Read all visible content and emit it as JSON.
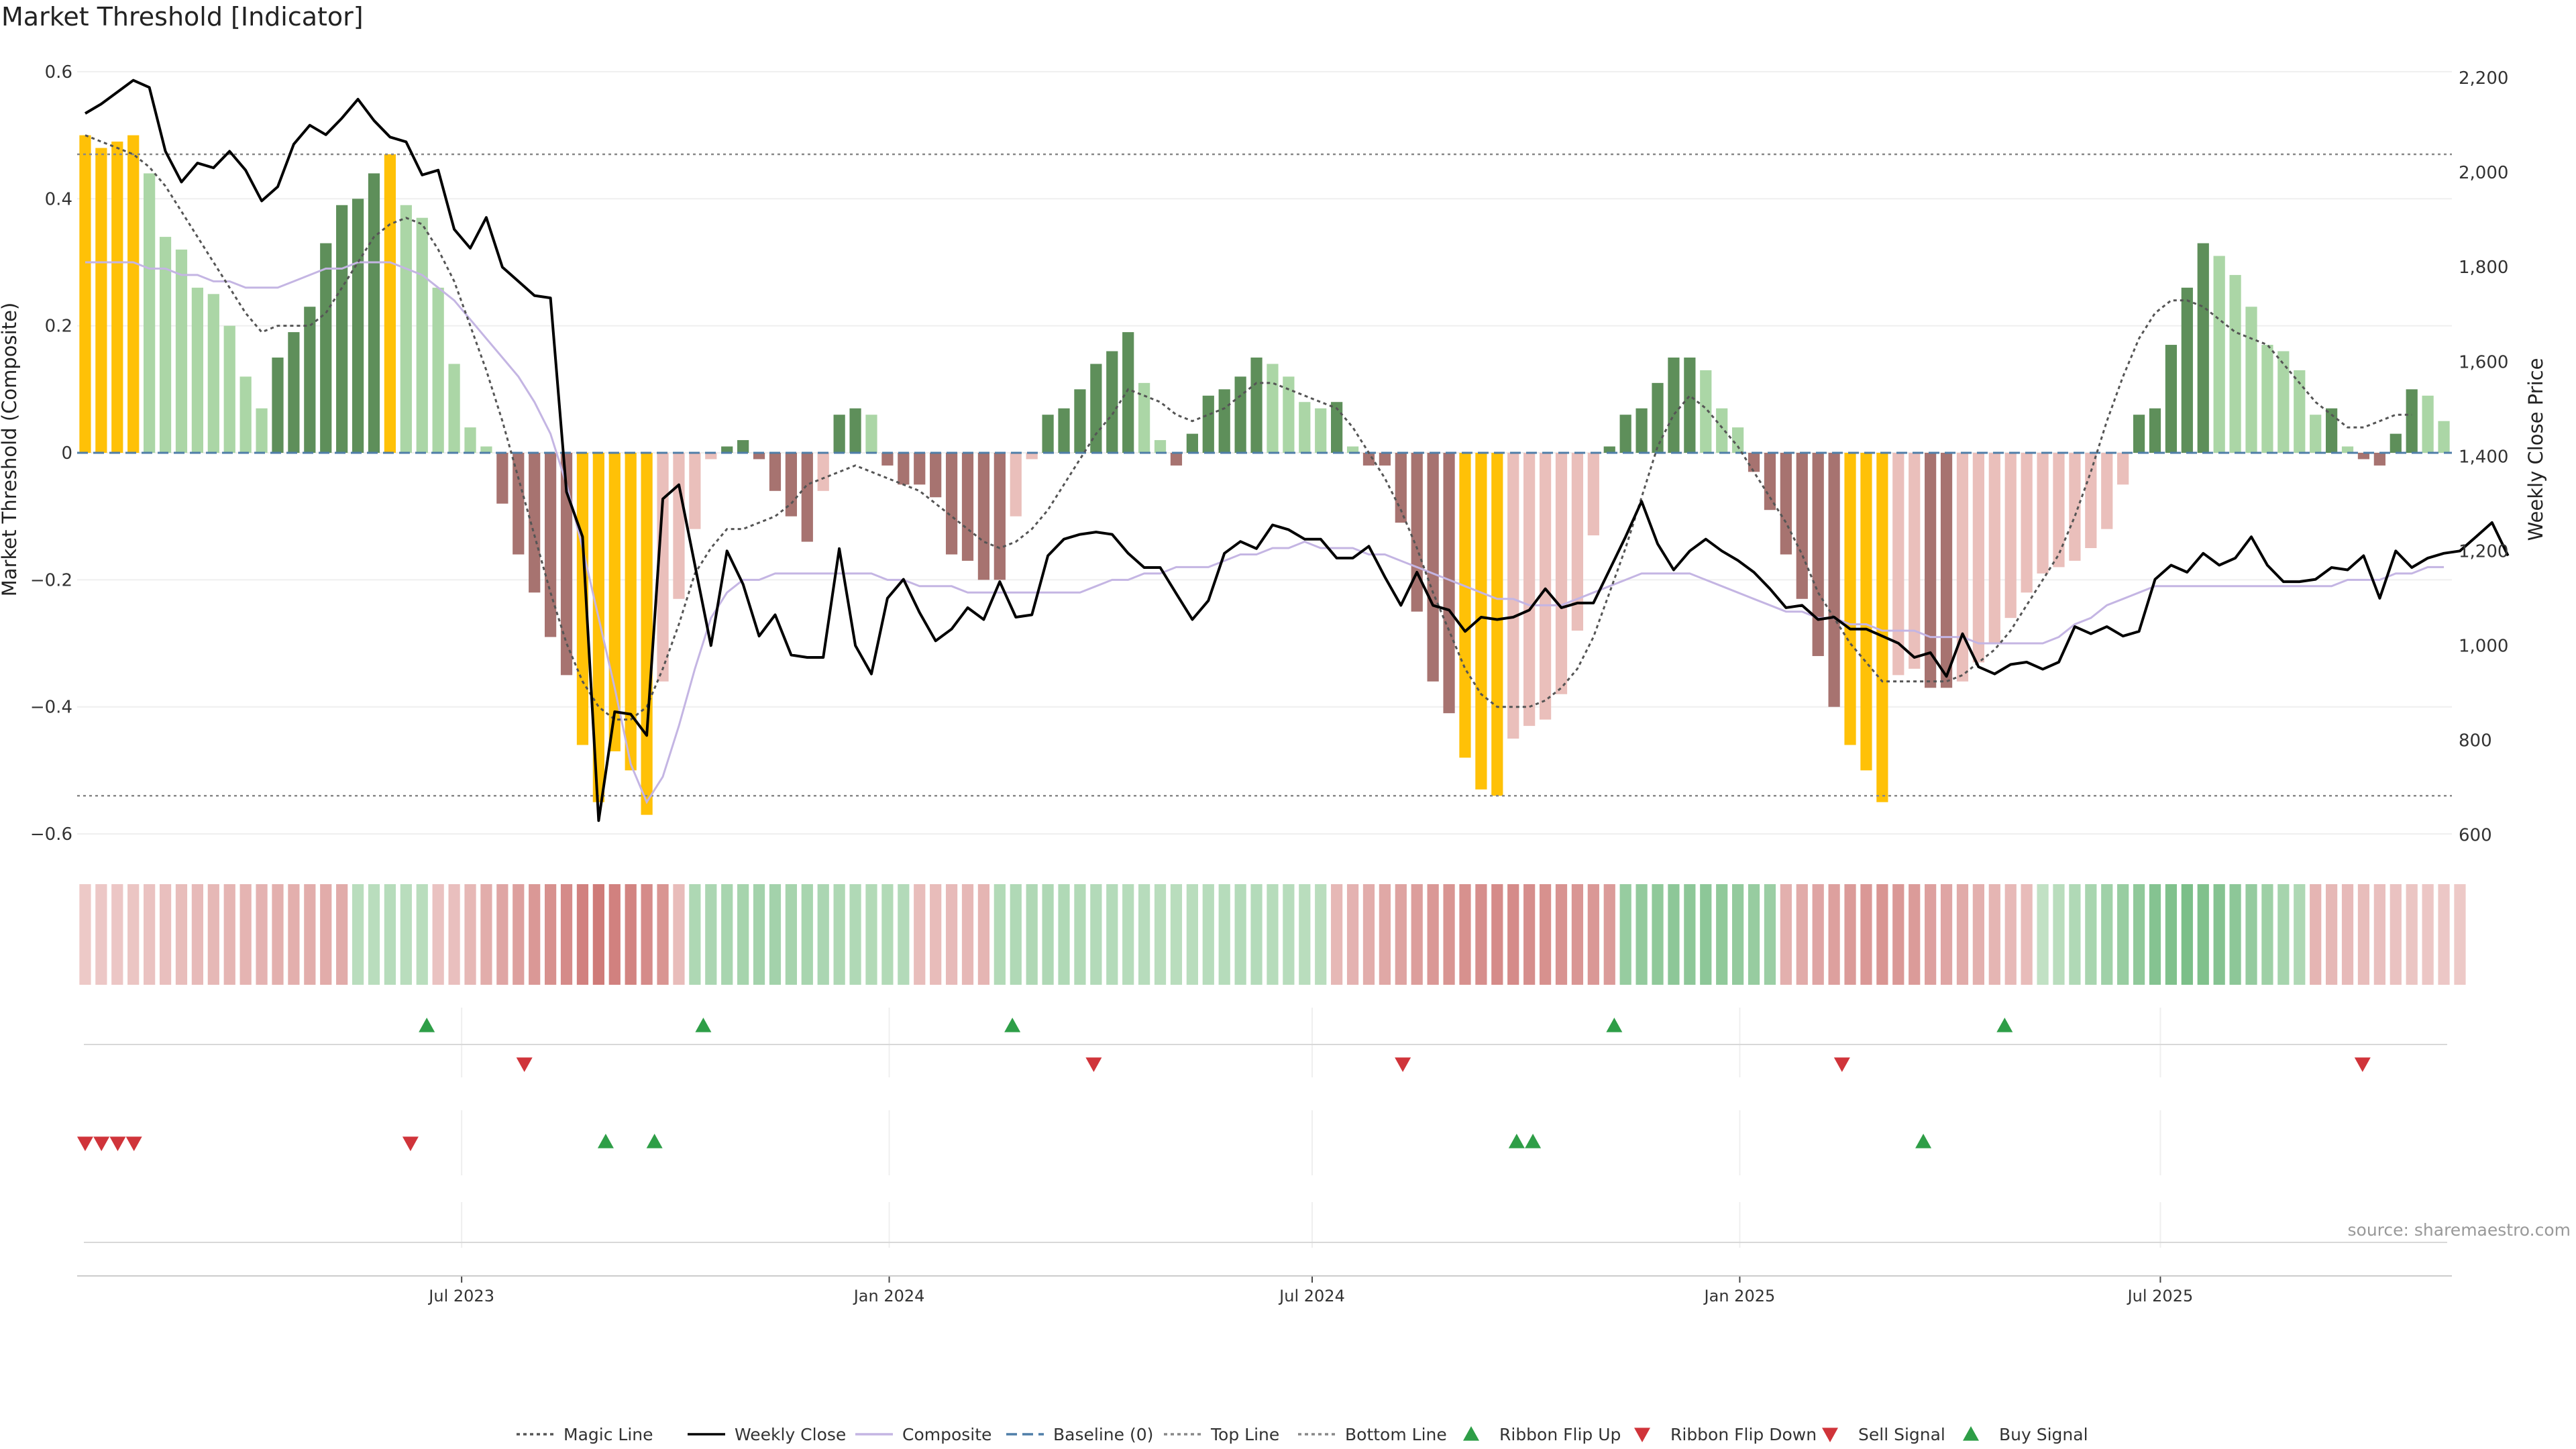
{
  "chart_data": {
    "type": "bar",
    "title": "Market Threshold [Indicator]",
    "source": "source: sharemaestro.com",
    "ylabel_left": "Market Threshold (Composite)",
    "ylabel_right": "Weekly Close Price",
    "ylim_left": [
      -0.62,
      0.62
    ],
    "ylim_right": [
      575,
      2240
    ],
    "yticks_left": [
      "0.6",
      "0.4",
      "0.2",
      "0",
      "−0.2",
      "−0.4",
      "−0.6"
    ],
    "yticks_right": [
      "2,200",
      "2,000",
      "1,800",
      "1,600",
      "1,400",
      "1,200",
      "1,000",
      "800",
      "600"
    ],
    "x_start": "2023-01-20",
    "x_end": "2025-10-31",
    "x_ticks": [
      {
        "date": "2023-07-01",
        "label": "Jul 2023"
      },
      {
        "date": "2024-01-01",
        "label": "Jan 2024"
      },
      {
        "date": "2024-07-01",
        "label": "Jul 2024"
      },
      {
        "date": "2025-01-01",
        "label": "Jan 2025"
      },
      {
        "date": "2025-07-01",
        "label": "Jul 2025"
      }
    ],
    "top_line": 0.47,
    "bottom_line": -0.54,
    "baseline": 0,
    "histogram": [
      0.5,
      0.48,
      0.49,
      0.5,
      0.44,
      0.34,
      0.32,
      0.26,
      0.25,
      0.2,
      0.12,
      0.07,
      0.15,
      0.19,
      0.23,
      0.33,
      0.39,
      0.4,
      0.44,
      0.47,
      0.39,
      0.37,
      0.26,
      0.14,
      0.04,
      0.01,
      -0.08,
      -0.16,
      -0.22,
      -0.29,
      -0.35,
      -0.46,
      -0.55,
      -0.47,
      -0.5,
      -0.57,
      -0.36,
      -0.23,
      -0.12,
      -0.01,
      0.01,
      0.02,
      -0.01,
      -0.06,
      -0.1,
      -0.14,
      -0.06,
      0.06,
      0.07,
      0.06,
      -0.02,
      -0.05,
      -0.05,
      -0.07,
      -0.16,
      -0.17,
      -0.2,
      -0.2,
      -0.1,
      -0.01,
      0.06,
      0.07,
      0.1,
      0.14,
      0.16,
      0.19,
      0.11,
      0.02,
      -0.02,
      0.03,
      0.09,
      0.1,
      0.12,
      0.15,
      0.14,
      0.12,
      0.08,
      0.07,
      0.08,
      0.01,
      -0.02,
      -0.02,
      -0.11,
      -0.25,
      -0.36,
      -0.41,
      -0.48,
      -0.53,
      -0.54,
      -0.45,
      -0.43,
      -0.42,
      -0.38,
      -0.28,
      -0.13,
      0.01,
      0.06,
      0.07,
      0.11,
      0.15,
      0.15,
      0.13,
      0.07,
      0.04,
      -0.03,
      -0.09,
      -0.16,
      -0.23,
      -0.32,
      -0.4,
      -0.46,
      -0.5,
      -0.55,
      -0.35,
      -0.34,
      -0.37,
      -0.37,
      -0.36,
      -0.33,
      -0.3,
      -0.26,
      -0.22,
      -0.19,
      -0.18,
      -0.17,
      -0.15,
      -0.12,
      -0.05,
      0.06,
      0.07,
      0.17,
      0.26,
      0.33,
      0.31,
      0.28,
      0.23,
      0.17,
      0.16,
      0.13,
      0.06,
      0.07,
      0.01,
      -0.01,
      -0.02,
      0.03,
      0.1,
      0.09,
      0.05
    ],
    "weekly_close": [
      2125,
      2145,
      2170,
      2195,
      2180,
      2045,
      1980,
      2020,
      2010,
      2045,
      2005,
      1940,
      1970,
      2060,
      2100,
      2080,
      2115,
      2155,
      2110,
      2075,
      2065,
      1995,
      2005,
      1880,
      1840,
      1905,
      1800,
      1770,
      1740,
      1735,
      1325,
      1230,
      630,
      860,
      855,
      810,
      1310,
      1340,
      1170,
      1000,
      1200,
      1130,
      1020,
      1065,
      980,
      975,
      975,
      1205,
      1000,
      940,
      1100,
      1140,
      1070,
      1010,
      1035,
      1080,
      1055,
      1135,
      1060,
      1065,
      1190,
      1225,
      1235,
      1240,
      1235,
      1195,
      1165,
      1165,
      1110,
      1055,
      1095,
      1195,
      1220,
      1205,
      1255,
      1245,
      1225,
      1225,
      1185,
      1185,
      1210,
      1145,
      1085,
      1155,
      1085,
      1075,
      1030,
      1060,
      1055,
      1060,
      1075,
      1120,
      1080,
      1090,
      1090,
      1160,
      1230,
      1305,
      1215,
      1160,
      1200,
      1225,
      1200,
      1180,
      1155,
      1120,
      1080,
      1085,
      1055,
      1060,
      1035,
      1035,
      1020,
      1005,
      975,
      985,
      935,
      1025,
      955,
      940,
      960,
      965,
      950,
      965,
      1040,
      1025,
      1040,
      1020,
      1030,
      1140,
      1170,
      1155,
      1195,
      1170,
      1185,
      1230,
      1170,
      1135,
      1135,
      1140,
      1165,
      1160,
      1190,
      1100,
      1200,
      1165,
      1185,
      1195,
      1200,
      1230,
      1260,
      1190
    ],
    "composite": [
      0.3,
      0.3,
      0.3,
      0.3,
      0.29,
      0.29,
      0.28,
      0.28,
      0.27,
      0.27,
      0.26,
      0.26,
      0.26,
      0.27,
      0.28,
      0.29,
      0.29,
      0.3,
      0.3,
      0.3,
      0.29,
      0.28,
      0.26,
      0.24,
      0.21,
      0.18,
      0.15,
      0.12,
      0.08,
      0.03,
      -0.05,
      -0.15,
      -0.26,
      -0.37,
      -0.49,
      -0.55,
      -0.51,
      -0.43,
      -0.34,
      -0.26,
      -0.22,
      -0.2,
      -0.2,
      -0.19,
      -0.19,
      -0.19,
      -0.19,
      -0.19,
      -0.19,
      -0.19,
      -0.2,
      -0.2,
      -0.21,
      -0.21,
      -0.21,
      -0.22,
      -0.22,
      -0.22,
      -0.22,
      -0.22,
      -0.22,
      -0.22,
      -0.22,
      -0.21,
      -0.2,
      -0.2,
      -0.19,
      -0.19,
      -0.18,
      -0.18,
      -0.18,
      -0.17,
      -0.16,
      -0.16,
      -0.15,
      -0.15,
      -0.14,
      -0.15,
      -0.15,
      -0.15,
      -0.16,
      -0.16,
      -0.17,
      -0.18,
      -0.19,
      -0.2,
      -0.21,
      -0.22,
      -0.23,
      -0.23,
      -0.24,
      -0.24,
      -0.24,
      -0.23,
      -0.22,
      -0.21,
      -0.2,
      -0.19,
      -0.19,
      -0.19,
      -0.19,
      -0.2,
      -0.21,
      -0.22,
      -0.23,
      -0.24,
      -0.25,
      -0.25,
      -0.26,
      -0.26,
      -0.27,
      -0.27,
      -0.28,
      -0.28,
      -0.28,
      -0.29,
      -0.29,
      -0.29,
      -0.3,
      -0.3,
      -0.3,
      -0.3,
      -0.3,
      -0.29,
      -0.27,
      -0.26,
      -0.24,
      -0.23,
      -0.22,
      -0.21,
      -0.21,
      -0.21,
      -0.21,
      -0.21,
      -0.21,
      -0.21,
      -0.21,
      -0.21,
      -0.21,
      -0.21,
      -0.21,
      -0.2,
      -0.2,
      -0.2,
      -0.19,
      -0.19,
      -0.18,
      -0.18
    ],
    "magic_line": [
      0.5,
      0.49,
      0.48,
      0.47,
      0.45,
      0.42,
      0.38,
      0.34,
      0.3,
      0.26,
      0.22,
      0.19,
      0.2,
      0.2,
      0.2,
      0.22,
      0.26,
      0.3,
      0.34,
      0.36,
      0.37,
      0.36,
      0.32,
      0.27,
      0.2,
      0.13,
      0.05,
      -0.04,
      -0.13,
      -0.22,
      -0.3,
      -0.36,
      -0.4,
      -0.42,
      -0.42,
      -0.4,
      -0.34,
      -0.27,
      -0.19,
      -0.15,
      -0.12,
      -0.12,
      -0.11,
      -0.1,
      -0.08,
      -0.05,
      -0.04,
      -0.03,
      -0.02,
      -0.03,
      -0.04,
      -0.05,
      -0.06,
      -0.08,
      -0.1,
      -0.12,
      -0.14,
      -0.15,
      -0.14,
      -0.12,
      -0.09,
      -0.05,
      -0.01,
      0.03,
      0.06,
      0.1,
      0.09,
      0.08,
      0.06,
      0.05,
      0.06,
      0.07,
      0.09,
      0.11,
      0.11,
      0.1,
      0.09,
      0.08,
      0.07,
      0.04,
      0.0,
      -0.04,
      -0.09,
      -0.15,
      -0.22,
      -0.28,
      -0.34,
      -0.38,
      -0.4,
      -0.4,
      -0.4,
      -0.39,
      -0.37,
      -0.34,
      -0.29,
      -0.22,
      -0.15,
      -0.07,
      0.01,
      0.06,
      0.09,
      0.07,
      0.04,
      0.01,
      -0.03,
      -0.07,
      -0.11,
      -0.16,
      -0.22,
      -0.26,
      -0.3,
      -0.33,
      -0.36,
      -0.36,
      -0.36,
      -0.36,
      -0.36,
      -0.35,
      -0.33,
      -0.31,
      -0.28,
      -0.24,
      -0.2,
      -0.16,
      -0.1,
      -0.03,
      0.05,
      0.12,
      0.18,
      0.22,
      0.24,
      0.24,
      0.23,
      0.21,
      0.19,
      0.18,
      0.17,
      0.14,
      0.11,
      0.08,
      0.06,
      0.04,
      0.04,
      0.05,
      0.06,
      0.06
    ],
    "ribbon": [
      -0.15,
      -0.16,
      -0.17,
      -0.18,
      -0.2,
      -0.22,
      -0.24,
      -0.26,
      -0.28,
      -0.3,
      -0.31,
      -0.32,
      -0.34,
      -0.35,
      -0.36,
      -0.37,
      -0.38,
      0.3,
      0.3,
      0.32,
      0.3,
      0.3,
      -0.2,
      -0.22,
      -0.28,
      -0.36,
      -0.42,
      -0.46,
      -0.52,
      -0.58,
      -0.62,
      -0.7,
      -0.75,
      -0.7,
      -0.68,
      -0.62,
      -0.55,
      -0.25,
      0.38,
      0.4,
      0.42,
      0.44,
      0.46,
      0.46,
      0.44,
      0.42,
      0.4,
      0.38,
      0.36,
      0.35,
      0.35,
      0.34,
      -0.24,
      -0.25,
      -0.26,
      -0.28,
      -0.3,
      0.35,
      0.36,
      0.37,
      0.37,
      0.36,
      0.35,
      0.34,
      0.33,
      0.32,
      0.31,
      0.3,
      0.3,
      0.3,
      0.31,
      0.32,
      0.33,
      0.33,
      0.32,
      0.31,
      0.3,
      0.3,
      -0.28,
      -0.32,
      -0.36,
      -0.4,
      -0.44,
      -0.48,
      -0.52,
      -0.55,
      -0.58,
      -0.6,
      -0.62,
      -0.62,
      -0.6,
      -0.58,
      -0.56,
      -0.54,
      -0.52,
      -0.5,
      0.55,
      0.58,
      0.6,
      0.62,
      0.62,
      0.62,
      0.6,
      0.58,
      0.55,
      0.52,
      -0.34,
      -0.38,
      -0.42,
      -0.46,
      -0.5,
      -0.52,
      -0.55,
      -0.52,
      -0.5,
      -0.46,
      -0.42,
      -0.38,
      -0.34,
      -0.3,
      -0.27,
      -0.25,
      0.24,
      0.3,
      0.36,
      0.42,
      0.48,
      0.54,
      0.6,
      0.68,
      0.72,
      0.75,
      0.72,
      0.68,
      0.62,
      0.56,
      0.5,
      0.44,
      0.38,
      -0.3,
      -0.28,
      -0.26,
      -0.24,
      -0.22,
      -0.2,
      -0.18,
      -0.17,
      -0.16,
      -0.15
    ],
    "ribbon_flip_up": [
      "2023-06-16",
      "2023-10-13",
      "2024-02-23",
      "2024-11-08",
      "2025-04-25"
    ],
    "ribbon_flip_down": [
      "2023-07-28",
      "2024-03-29",
      "2024-08-09",
      "2025-02-14",
      "2025-09-26"
    ],
    "sell_signal": [
      "2023-01-20",
      "2023-01-27",
      "2023-02-03",
      "2023-02-10",
      "2023-06-09"
    ],
    "buy_signal": [
      "2023-09-01",
      "2023-09-22",
      "2024-09-27",
      "2024-10-04",
      "2025-03-21"
    ],
    "legend": [
      {
        "label": "Magic Line",
        "symbol": "dotted-line",
        "color": "#555555"
      },
      {
        "label": "Weekly Close",
        "symbol": "line",
        "color": "#000000"
      },
      {
        "label": "Composite",
        "symbol": "line",
        "color": "#c4b5e3"
      },
      {
        "label": "Baseline (0)",
        "symbol": "dashed-line",
        "color": "#4f7ea8"
      },
      {
        "label": "Top Line",
        "symbol": "dotted-line",
        "color": "#888888"
      },
      {
        "label": "Bottom Line",
        "symbol": "dotted-line",
        "color": "#888888"
      },
      {
        "label": "Ribbon Flip Up",
        "symbol": "triangle-up",
        "color": "#2e9e47"
      },
      {
        "label": "Ribbon Flip Down",
        "symbol": "triangle-down",
        "color": "#d0343a"
      },
      {
        "label": "Sell Signal",
        "symbol": "triangle-down",
        "color": "#d0343a"
      },
      {
        "label": "Buy Signal",
        "symbol": "triangle-up",
        "color": "#2e9e47"
      }
    ],
    "colors": {
      "extreme": "#ffc107",
      "pos_strong": "#5e8f5a",
      "pos_weak": "#abd6a6",
      "neg_strong": "#a77370",
      "neg_weak": "#eabfbb",
      "close": "#000000",
      "composite": "#c4b5e3",
      "magic": "#555555",
      "baseline": "#4f7ea8",
      "flip_up": "#2e9e47",
      "flip_down": "#d0343a"
    }
  }
}
